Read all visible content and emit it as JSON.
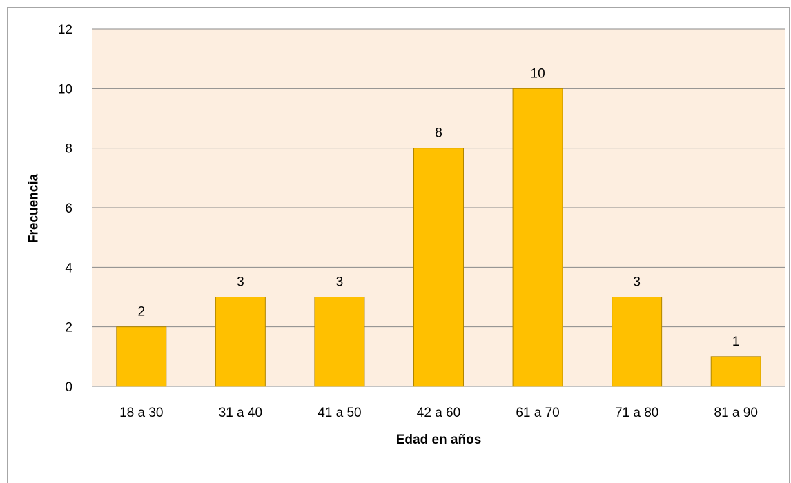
{
  "chart_data": {
    "type": "bar",
    "categories": [
      "18 a 30",
      "31 a 40",
      "41 a 50",
      "42 a 60",
      "61 a 70",
      "71 a 80",
      "81 a 90"
    ],
    "values": [
      2,
      3,
      3,
      8,
      10,
      3,
      1
    ],
    "xlabel": "Edad en años",
    "ylabel": "Frecuencia",
    "ylim": [
      0,
      12
    ],
    "yticks": [
      "0",
      "2",
      "4",
      "6",
      "8",
      "10",
      "12"
    ],
    "grid": true,
    "data_labels": true,
    "legend": "none",
    "colors": {
      "bar_fill": "#FFC000",
      "bar_stroke": "#B08500",
      "plot_background": "#FDEEE0",
      "gridline": "#8a8a8a"
    }
  }
}
